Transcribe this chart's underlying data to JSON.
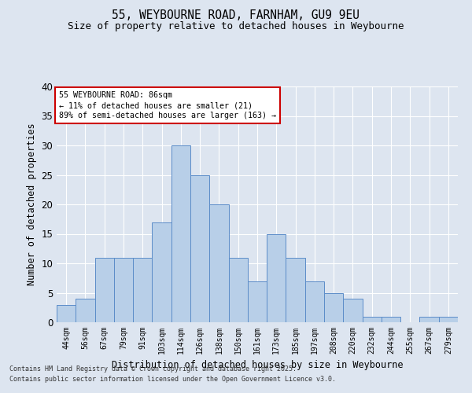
{
  "title1": "55, WEYBOURNE ROAD, FARNHAM, GU9 9EU",
  "title2": "Size of property relative to detached houses in Weybourne",
  "xlabel": "Distribution of detached houses by size in Weybourne",
  "ylabel": "Number of detached properties",
  "categories": [
    "44sqm",
    "56sqm",
    "67sqm",
    "79sqm",
    "91sqm",
    "103sqm",
    "114sqm",
    "126sqm",
    "138sqm",
    "150sqm",
    "161sqm",
    "173sqm",
    "185sqm",
    "197sqm",
    "208sqm",
    "220sqm",
    "232sqm",
    "244sqm",
    "255sqm",
    "267sqm",
    "279sqm"
  ],
  "values": [
    3,
    4,
    11,
    11,
    11,
    17,
    30,
    25,
    20,
    11,
    7,
    15,
    11,
    7,
    5,
    4,
    1,
    1,
    0,
    1,
    1
  ],
  "bar_color": "#b8cfe8",
  "bar_edge_color": "#5b8cc8",
  "annotation_title": "55 WEYBOURNE ROAD: 86sqm",
  "annotation_line2": "← 11% of detached houses are smaller (21)",
  "annotation_line3": "89% of semi-detached houses are larger (163) →",
  "annotation_box_color": "#ffffff",
  "annotation_box_edge": "#cc0000",
  "ylim": [
    0,
    40
  ],
  "yticks": [
    0,
    5,
    10,
    15,
    20,
    25,
    30,
    35,
    40
  ],
  "footer1": "Contains HM Land Registry data © Crown copyright and database right 2025.",
  "footer2": "Contains public sector information licensed under the Open Government Licence v3.0.",
  "bg_color": "#dde5f0",
  "plot_bg_color": "#dde5f0",
  "grid_color": "#ffffff"
}
